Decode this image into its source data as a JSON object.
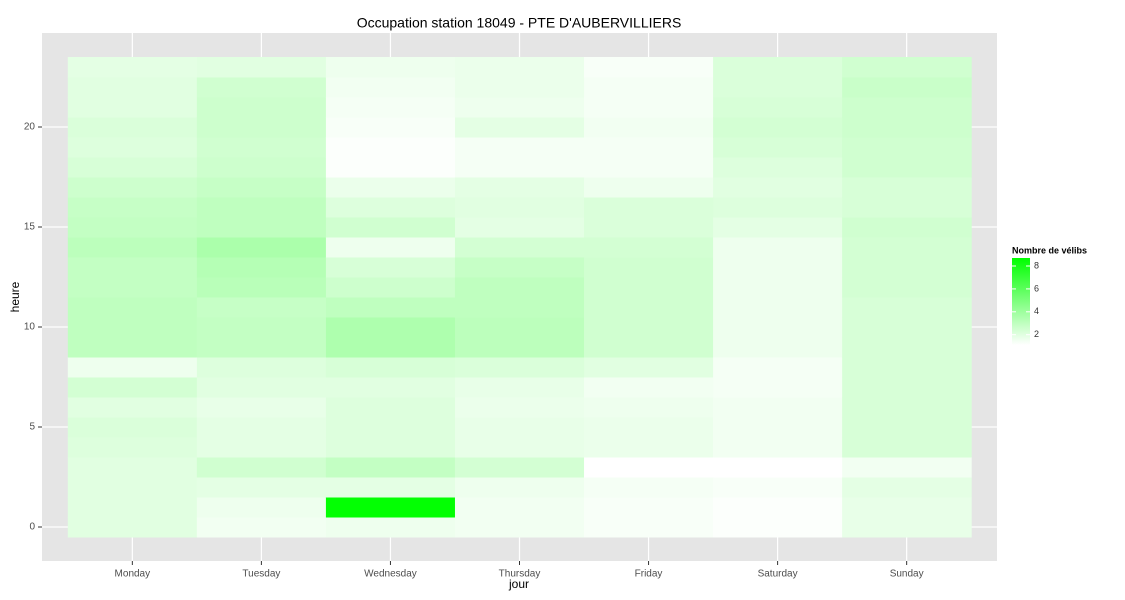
{
  "chart_data": {
    "type": "heatmap",
    "title": "Occupation station 18049 - PTE D'AUBERVILLIERS",
    "x_label": "jour",
    "y_label": "heure",
    "categories": [
      "Monday",
      "Tuesday",
      "Wednesday",
      "Thursday",
      "Friday",
      "Saturday",
      "Sunday"
    ],
    "y": [
      0,
      1,
      2,
      3,
      4,
      5,
      6,
      7,
      8,
      9,
      10,
      11,
      12,
      13,
      14,
      15,
      16,
      17,
      18,
      19,
      20,
      21,
      22,
      23
    ],
    "values": [
      [
        2.0,
        2.0,
        2.0,
        2.0,
        2.1,
        2.2,
        2.0,
        2.4,
        1.6,
        3.0,
        3.0,
        3.0,
        2.9,
        2.9,
        3.1,
        2.9,
        2.8,
        2.6,
        2.3,
        2.1,
        2.2,
        2.0,
        2.0,
        1.9
      ],
      [
        1.5,
        1.6,
        1.9,
        2.5,
        1.9,
        1.9,
        1.8,
        2.0,
        2.1,
        2.9,
        2.9,
        2.8,
        3.2,
        3.3,
        3.6,
        3.0,
        3.0,
        2.8,
        2.6,
        2.5,
        2.6,
        2.6,
        2.5,
        2.0
      ],
      [
        1.6,
        8.6,
        1.9,
        2.9,
        2.1,
        2.1,
        2.1,
        2.0,
        2.3,
        3.5,
        3.5,
        3.0,
        2.6,
        2.3,
        1.6,
        2.5,
        2.1,
        1.7,
        1.2,
        1.2,
        1.3,
        1.4,
        1.5,
        1.6
      ],
      [
        1.5,
        1.5,
        1.6,
        2.4,
        1.8,
        1.8,
        1.7,
        1.8,
        2.2,
        3.1,
        3.1,
        3.0,
        3.0,
        2.8,
        2.4,
        1.9,
        2.0,
        1.9,
        1.4,
        1.4,
        1.9,
        1.6,
        1.7,
        1.7
      ],
      [
        1.3,
        1.3,
        1.4,
        1.1,
        1.7,
        1.7,
        1.6,
        1.5,
        2.0,
        2.5,
        2.5,
        2.5,
        2.5,
        2.5,
        2.4,
        2.2,
        2.2,
        1.6,
        1.4,
        1.4,
        1.5,
        1.4,
        1.4,
        1.3
      ],
      [
        1.2,
        1.2,
        1.3,
        1.1,
        1.5,
        1.5,
        1.5,
        1.4,
        1.4,
        1.6,
        1.6,
        1.6,
        1.6,
        1.6,
        1.6,
        1.9,
        2.1,
        2.0,
        2.1,
        2.3,
        2.4,
        2.3,
        2.2,
        2.2
      ],
      [
        1.8,
        1.8,
        1.9,
        1.5,
        2.3,
        2.3,
        2.3,
        2.3,
        2.3,
        2.3,
        2.3,
        2.3,
        2.4,
        2.4,
        2.4,
        2.5,
        2.3,
        2.3,
        2.5,
        2.5,
        2.6,
        2.6,
        2.7,
        2.5
      ]
    ],
    "ylim": [
      -1.7,
      24.7
    ],
    "yticks": [
      0,
      5,
      10,
      15,
      20
    ],
    "grid": true,
    "legend_title": "Nombre de vélibs",
    "colorlim": [
      1.1,
      8.7
    ],
    "legend_ticks": [
      2,
      4,
      6,
      8
    ],
    "color_low": "#ffffff",
    "color_high": "#00ff00"
  }
}
